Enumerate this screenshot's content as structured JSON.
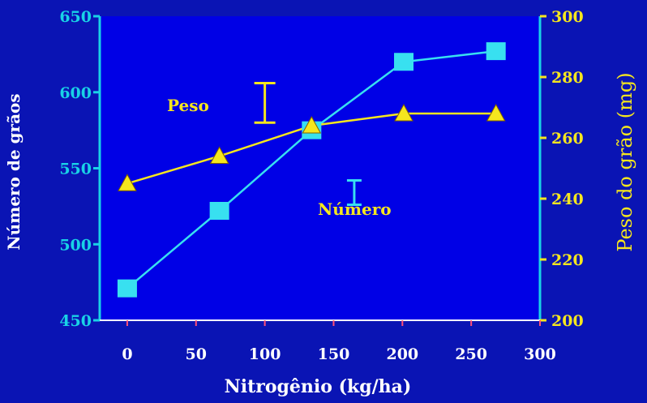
{
  "chart_data": {
    "type": "line",
    "xlabel": "Nitrogênio (kg/ha)",
    "ylabel_left": "Número de grãos",
    "ylabel_right": "Peso do grão (mg)",
    "xlim": [
      -20,
      300
    ],
    "x_ticks": [
      "0",
      "50",
      "100",
      "150",
      "200",
      "250",
      "300"
    ],
    "ylim_left": [
      450,
      650
    ],
    "y_ticks_left": [
      "450",
      "500",
      "550",
      "600",
      "650"
    ],
    "ylim_right": [
      200,
      300
    ],
    "y_ticks_right": [
      "200",
      "220",
      "240",
      "260",
      "280",
      "300"
    ],
    "grid": false,
    "series": [
      {
        "name": "Número",
        "axis": "left",
        "color": "#38e0f0",
        "marker": "square",
        "x": [
          0,
          67,
          134,
          201,
          268
        ],
        "y": [
          471,
          522,
          575,
          620,
          627
        ]
      },
      {
        "name": "Peso",
        "axis": "right",
        "color": "#f5e61e",
        "marker": "triangle",
        "x": [
          0,
          67,
          134,
          201,
          268
        ],
        "y": [
          245,
          254,
          264,
          268,
          268
        ]
      }
    ],
    "annotations": [
      {
        "label": "Peso",
        "color": "#f5e61e",
        "error_bar_x": 100,
        "error_bar_low_right": 265,
        "error_bar_high_right": 278
      },
      {
        "label": "Número",
        "color": "#38e0f0",
        "error_bar_x": 165,
        "error_bar_low_left": 526,
        "error_bar_high_left": 542
      }
    ],
    "colors": {
      "page_background": "#0a14b4",
      "plot_background": "#0000e6",
      "left_axis": "#19d2e6",
      "right_axis": "#f5e61e",
      "x_axis": "#ffffff"
    }
  }
}
